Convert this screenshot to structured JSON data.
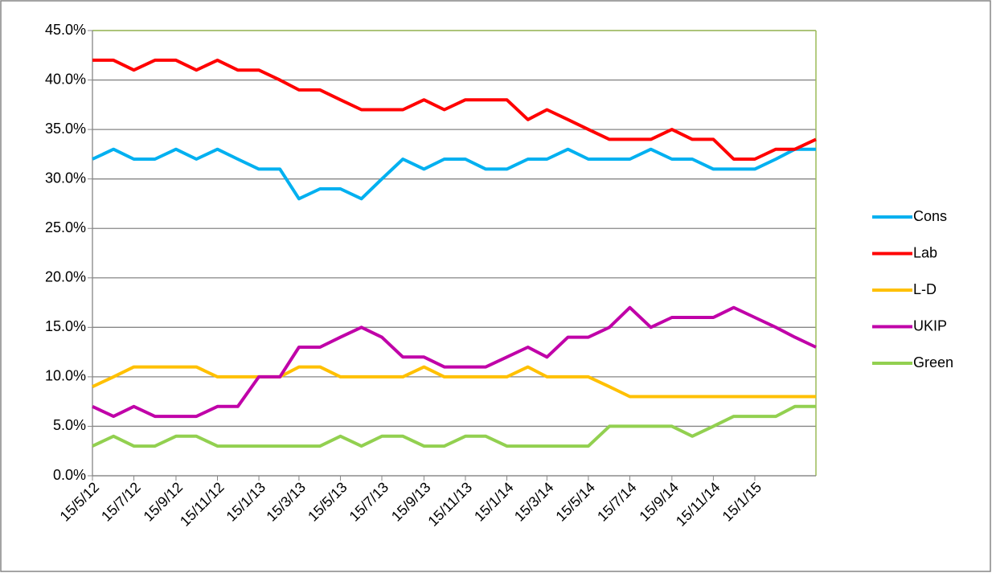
{
  "chart_data": {
    "type": "line",
    "x": [
      "2012-05-15",
      "2012-06-15",
      "2012-07-15",
      "2012-08-15",
      "2012-09-15",
      "2012-10-15",
      "2012-11-15",
      "2012-12-15",
      "2013-01-15",
      "2013-02-15",
      "2013-03-15",
      "2013-04-15",
      "2013-05-15",
      "2013-06-15",
      "2013-07-15",
      "2013-08-15",
      "2013-09-15",
      "2013-10-15",
      "2013-11-15",
      "2013-12-15",
      "2014-01-15",
      "2014-02-15",
      "2014-03-15",
      "2014-04-15",
      "2014-05-15",
      "2014-06-15",
      "2014-07-15",
      "2014-08-15",
      "2014-09-15",
      "2014-10-15",
      "2014-11-15",
      "2014-12-15",
      "2015-01-15",
      "2015-02-15",
      "2015-03-15",
      "2015-04-15"
    ],
    "series": [
      {
        "name": "Cons",
        "color": "#00b0f0",
        "values": [
          32,
          33,
          32,
          32,
          33,
          32,
          33,
          32,
          31,
          31,
          28,
          29,
          29,
          28,
          30,
          32,
          31,
          32,
          32,
          31,
          31,
          32,
          32,
          33,
          32,
          32,
          32,
          33,
          32,
          32,
          31,
          31,
          31,
          32,
          33,
          33
        ]
      },
      {
        "name": "Lab",
        "color": "#ff0000",
        "values": [
          42,
          42,
          41,
          42,
          42,
          41,
          42,
          41,
          41,
          40,
          39,
          39,
          38,
          37,
          37,
          37,
          38,
          37,
          38,
          38,
          38,
          36,
          37,
          36,
          35,
          34,
          34,
          34,
          35,
          34,
          34,
          32,
          32,
          33,
          33,
          34
        ]
      },
      {
        "name": "L-D",
        "color": "#ffc000",
        "values": [
          9,
          10,
          11,
          11,
          11,
          11,
          10,
          10,
          10,
          10,
          11,
          11,
          10,
          10,
          10,
          10,
          11,
          10,
          10,
          10,
          10,
          11,
          10,
          10,
          10,
          9,
          8,
          8,
          8,
          8,
          8,
          8,
          8,
          8,
          8,
          8
        ]
      },
      {
        "name": "UKIP",
        "color": "#c000a8",
        "values": [
          7,
          6,
          7,
          6,
          6,
          6,
          7,
          7,
          10,
          10,
          13,
          13,
          14,
          15,
          14,
          12,
          12,
          11,
          11,
          11,
          12,
          13,
          12,
          14,
          14,
          15,
          17,
          15,
          16,
          16,
          16,
          17,
          16,
          15,
          14,
          13
        ]
      },
      {
        "name": "Green",
        "color": "#92d050",
        "values": [
          3,
          4,
          3,
          3,
          4,
          4,
          3,
          3,
          3,
          3,
          3,
          3,
          4,
          3,
          4,
          4,
          3,
          3,
          4,
          4,
          3,
          3,
          3,
          3,
          3,
          5,
          5,
          5,
          5,
          4,
          5,
          6,
          6,
          6,
          7,
          7
        ]
      }
    ],
    "xlim": [
      "2012-05-15",
      "2015-04-15"
    ],
    "xticks": [
      {
        "value": "2012-05-15",
        "label": "15/5/12"
      },
      {
        "value": "2012-07-15",
        "label": "15/7/12"
      },
      {
        "value": "2012-09-15",
        "label": "15/9/12"
      },
      {
        "value": "2012-11-15",
        "label": "15/11/12"
      },
      {
        "value": "2013-01-15",
        "label": "15/1/13"
      },
      {
        "value": "2013-03-15",
        "label": "15/3/13"
      },
      {
        "value": "2013-05-15",
        "label": "15/5/13"
      },
      {
        "value": "2013-07-15",
        "label": "15/7/13"
      },
      {
        "value": "2013-09-15",
        "label": "15/9/13"
      },
      {
        "value": "2013-11-15",
        "label": "15/11/13"
      },
      {
        "value": "2014-01-15",
        "label": "15/1/14"
      },
      {
        "value": "2014-03-15",
        "label": "15/3/14"
      },
      {
        "value": "2014-05-15",
        "label": "15/5/14"
      },
      {
        "value": "2014-07-15",
        "label": "15/7/14"
      },
      {
        "value": "2014-09-15",
        "label": "15/9/14"
      },
      {
        "value": "2014-11-15",
        "label": "15/11/14"
      },
      {
        "value": "2015-01-15",
        "label": "15/1/15"
      }
    ],
    "ylim": [
      0,
      45
    ],
    "yticks": [
      {
        "value": 0,
        "label": "0.0%"
      },
      {
        "value": 5,
        "label": "5.0%"
      },
      {
        "value": 10,
        "label": "10.0%"
      },
      {
        "value": 15,
        "label": "15.0%"
      },
      {
        "value": 20,
        "label": "20.0%"
      },
      {
        "value": 25,
        "label": "25.0%"
      },
      {
        "value": 30,
        "label": "30.0%"
      },
      {
        "value": 35,
        "label": "35.0%"
      },
      {
        "value": 40,
        "label": "40.0%"
      },
      {
        "value": 45,
        "label": "45.0%"
      }
    ],
    "grid": true,
    "legend": "right"
  }
}
